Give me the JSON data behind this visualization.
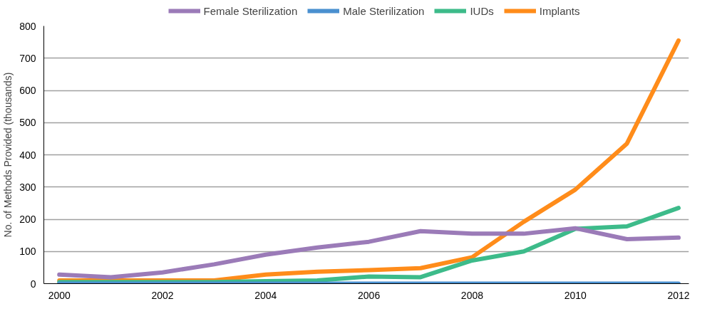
{
  "chart_data": {
    "type": "line",
    "ylabel": "No. of Methods Provided (thousands)",
    "x": [
      2000,
      2001,
      2002,
      2003,
      2004,
      2005,
      2006,
      2007,
      2008,
      2009,
      2010,
      2011,
      2012
    ],
    "series": [
      {
        "name": "Female Sterilization",
        "color": "#9b7bb8",
        "values": [
          28,
          20,
          35,
          60,
          90,
          112,
          130,
          163,
          155,
          155,
          172,
          138,
          143
        ]
      },
      {
        "name": "Male Sterilization",
        "color": "#4a90d0",
        "values": [
          0,
          0,
          0,
          0,
          0,
          0,
          0,
          0,
          0,
          0,
          0,
          0,
          0
        ]
      },
      {
        "name": "IUDs",
        "color": "#3dbb8a",
        "values": [
          5,
          5,
          5,
          5,
          8,
          10,
          22,
          20,
          72,
          100,
          170,
          178,
          235
        ]
      },
      {
        "name": "Implants",
        "color": "#ff8c1a",
        "values": [
          10,
          10,
          10,
          10,
          28,
          37,
          42,
          48,
          82,
          192,
          292,
          435,
          755
        ]
      }
    ],
    "xlim": [
      1999.7,
      2012.2
    ],
    "xticks": [
      2000,
      2002,
      2004,
      2006,
      2008,
      2010,
      2012
    ],
    "ylim": [
      0,
      800
    ],
    "yticks": [
      0,
      100,
      200,
      300,
      400,
      500,
      600,
      700,
      800
    ],
    "grid": "y",
    "legend": "top",
    "marker": "none",
    "line_style": "solid"
  }
}
